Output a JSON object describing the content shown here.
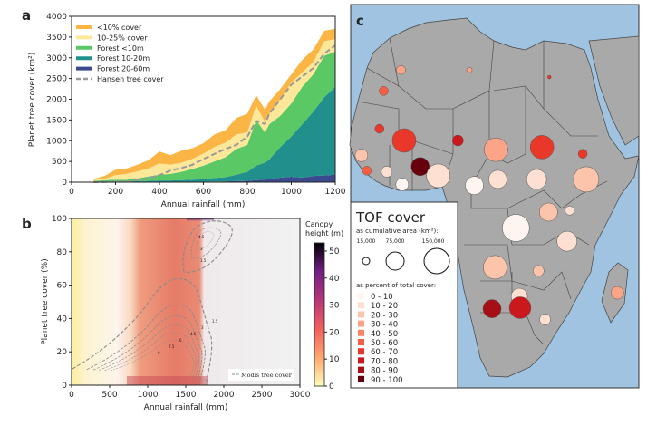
{
  "chart_data": [
    {
      "type": "area",
      "panel_label": "a",
      "stacked": true,
      "xlabel": "Annual rainfall (mm)",
      "ylabel": "Planet tree cover (km²)",
      "xlim": [
        0,
        1200
      ],
      "ylim": [
        0,
        4000
      ],
      "xticks": [
        "0",
        "200",
        "400",
        "600",
        "800",
        "1000",
        "1200"
      ],
      "yticks": [
        "0",
        "500",
        "1000",
        "1500",
        "2000",
        "2500",
        "3000",
        "3500",
        "4000"
      ],
      "legend_position": "top-left",
      "x": [
        100,
        150,
        200,
        250,
        300,
        350,
        400,
        450,
        500,
        550,
        600,
        650,
        700,
        750,
        800,
        840,
        880,
        900,
        950,
        1000,
        1050,
        1100,
        1150,
        1200
      ],
      "series": [
        {
          "name": "Forest 20-60m",
          "color": "#3b4a8f",
          "values": [
            0,
            0,
            2,
            2,
            3,
            5,
            8,
            8,
            10,
            10,
            12,
            15,
            20,
            25,
            30,
            50,
            60,
            80,
            110,
            130,
            110,
            150,
            160,
            180
          ]
        },
        {
          "name": "Forest 10-20m",
          "color": "#21908d",
          "values": [
            5,
            10,
            13,
            18,
            22,
            25,
            32,
            32,
            40,
            50,
            58,
            85,
            100,
            155,
            220,
            350,
            410,
            470,
            740,
            970,
            1290,
            1550,
            1890,
            2120
          ]
        },
        {
          "name": "Forest <10m",
          "color": "#5ac864",
          "values": [
            25,
            40,
            45,
            40,
            65,
            110,
            140,
            160,
            200,
            260,
            330,
            400,
            480,
            620,
            650,
            1100,
            730,
            850,
            750,
            800,
            900,
            900,
            1000,
            850
          ]
        },
        {
          "name": "10-25% cover",
          "color": "#fde89a",
          "values": [
            20,
            30,
            110,
            140,
            170,
            190,
            270,
            220,
            220,
            240,
            290,
            350,
            350,
            350,
            300,
            350,
            250,
            250,
            400,
            500,
            350,
            300,
            350,
            300
          ]
        },
        {
          "name": "<10% cover",
          "color": "#fbb545",
          "values": [
            30,
            70,
            130,
            130,
            160,
            200,
            290,
            230,
            290,
            260,
            250,
            300,
            300,
            400,
            450,
            250,
            300,
            300,
            250,
            200,
            300,
            300,
            250,
            250
          ]
        }
      ],
      "line": {
        "name": "Hansen tree cover",
        "color": "#999999",
        "style": "dashed",
        "values": [
          0,
          5,
          10,
          15,
          50,
          100,
          170,
          280,
          340,
          420,
          560,
          680,
          800,
          900,
          1100,
          1480,
          1400,
          1650,
          2000,
          2350,
          2550,
          2750,
          3100,
          3300
        ]
      },
      "legend_order": [
        "<10% cover",
        "10-25% cover",
        "Forest <10m",
        "Forest 10-20m",
        "Forest 20-60m",
        "Hansen tree cover"
      ]
    },
    {
      "type": "heatmap",
      "panel_label": "b",
      "xlabel": "Annual rainfall (mm)",
      "ylabel": "Planet tree cover (%)",
      "xlim": [
        0,
        3000
      ],
      "ylim": [
        0,
        100
      ],
      "xticks": [
        "0",
        "500",
        "1000",
        "1500",
        "2000",
        "2500",
        "3000"
      ],
      "yticks": [
        "0",
        "20",
        "40",
        "60",
        "80",
        "100"
      ],
      "colorbar": {
        "title_line1": "Canopy",
        "title_line2": "height (m)",
        "range": [
          0,
          53
        ],
        "ticks": [
          "0",
          "10",
          "20",
          "30",
          "40",
          "50"
        ],
        "colormap": "magma_r"
      },
      "contour_legend": "Modis tree cover",
      "contour_labels": [
        "1.5",
        "3",
        "4.5",
        "6",
        "7.5",
        "9",
        "1.5",
        "3",
        "4.5"
      ]
    }
  ],
  "map": {
    "panel_label": "c",
    "legend": {
      "title": "TOF cover",
      "size_heading": "as cumulative area (km²):",
      "sizes": [
        "15,000",
        "75,000",
        "150,000"
      ],
      "color_heading": "as percent of total cover:",
      "bins": [
        {
          "label": "0 - 10",
          "color": "#fff5f0"
        },
        {
          "label": "10 - 20",
          "color": "#fee0d2"
        },
        {
          "label": "20 - 30",
          "color": "#fcc5ab"
        },
        {
          "label": "30 - 40",
          "color": "#fca487"
        },
        {
          "label": "40 - 50",
          "color": "#fb8464"
        },
        {
          "label": "50 - 60",
          "color": "#f85e43"
        },
        {
          "label": "60 - 70",
          "color": "#e9372a"
        },
        {
          "label": "70 - 80",
          "color": "#cb181d"
        },
        {
          "label": "80 - 90",
          "color": "#a50f15"
        },
        {
          "label": "90 - 100",
          "color": "#67000d"
        }
      ]
    },
    "sea_color": "#9fc3e0",
    "land_color": "#a9a9a9",
    "sites": [
      {
        "lon": -6.9,
        "lat": 25.2,
        "area_km2": 19000,
        "bin": 3
      },
      {
        "lon": -11.4,
        "lat": 21.1,
        "area_km2": 19000,
        "bin": 5
      },
      {
        "lon": 10.9,
        "lat": 25.2,
        "area_km2": 7000,
        "bin": 3
      },
      {
        "lon": 31.7,
        "lat": 23.8,
        "area_km2": 3000,
        "bin": 6
      },
      {
        "lon": -12.5,
        "lat": 13.7,
        "area_km2": 19000,
        "bin": 6
      },
      {
        "lon": -6.1,
        "lat": 11.4,
        "area_km2": 130000,
        "bin": 6
      },
      {
        "lon": 7.9,
        "lat": 11.4,
        "area_km2": 28000,
        "bin": 7
      },
      {
        "lon": 17.8,
        "lat": 9.6,
        "area_km2": 130000,
        "bin": 3
      },
      {
        "lon": 29.8,
        "lat": 10.1,
        "area_km2": 130000,
        "bin": 6
      },
      {
        "lon": -17.2,
        "lat": 8.5,
        "area_km2": 38000,
        "bin": 2
      },
      {
        "lon": -15.8,
        "lat": 5.5,
        "area_km2": 19000,
        "bin": 5
      },
      {
        "lon": -10.6,
        "lat": 5.3,
        "area_km2": 28000,
        "bin": 1
      },
      {
        "lon": -1.9,
        "lat": 6.3,
        "area_km2": 77000,
        "bin": 9
      },
      {
        "lon": -6.6,
        "lat": 2.8,
        "area_km2": 38000,
        "bin": 0
      },
      {
        "lon": 2.8,
        "lat": 4.5,
        "area_km2": 130000,
        "bin": 1
      },
      {
        "lon": 12.2,
        "lat": 2.6,
        "area_km2": 77000,
        "bin": 0
      },
      {
        "lon": 18.3,
        "lat": 3.8,
        "area_km2": 77000,
        "bin": 1
      },
      {
        "lon": 28.4,
        "lat": 3.8,
        "area_km2": 93000,
        "bin": 1
      },
      {
        "lon": 40.4,
        "lat": 8.8,
        "area_km2": 19000,
        "bin": 6
      },
      {
        "lon": 41.3,
        "lat": 3.8,
        "area_km2": 150000,
        "bin": 2
      },
      {
        "lon": 31.5,
        "lat": -2.6,
        "area_km2": 77000,
        "bin": 2
      },
      {
        "lon": 37.0,
        "lat": -2.3,
        "area_km2": 19000,
        "bin": 1
      },
      {
        "lon": 23.0,
        "lat": -5.7,
        "area_km2": 172000,
        "bin": 0
      },
      {
        "lon": 36.3,
        "lat": -8.3,
        "area_km2": 93000,
        "bin": 1
      },
      {
        "lon": 17.6,
        "lat": -13.4,
        "area_km2": 130000,
        "bin": 2
      },
      {
        "lon": 28.9,
        "lat": -14.1,
        "area_km2": 28000,
        "bin": 2
      },
      {
        "lon": 23.9,
        "lat": -19.1,
        "area_km2": 62000,
        "bin": 1
      },
      {
        "lon": 24.1,
        "lat": -21.3,
        "area_km2": 110000,
        "bin": 7
      },
      {
        "lon": 16.8,
        "lat": -21.5,
        "area_km2": 77000,
        "bin": 8
      },
      {
        "lon": 30.6,
        "lat": -23.6,
        "area_km2": 28000,
        "bin": 1
      },
      {
        "lon": 49.4,
        "lat": -18.4,
        "area_km2": 38000,
        "bin": 3
      }
    ]
  }
}
